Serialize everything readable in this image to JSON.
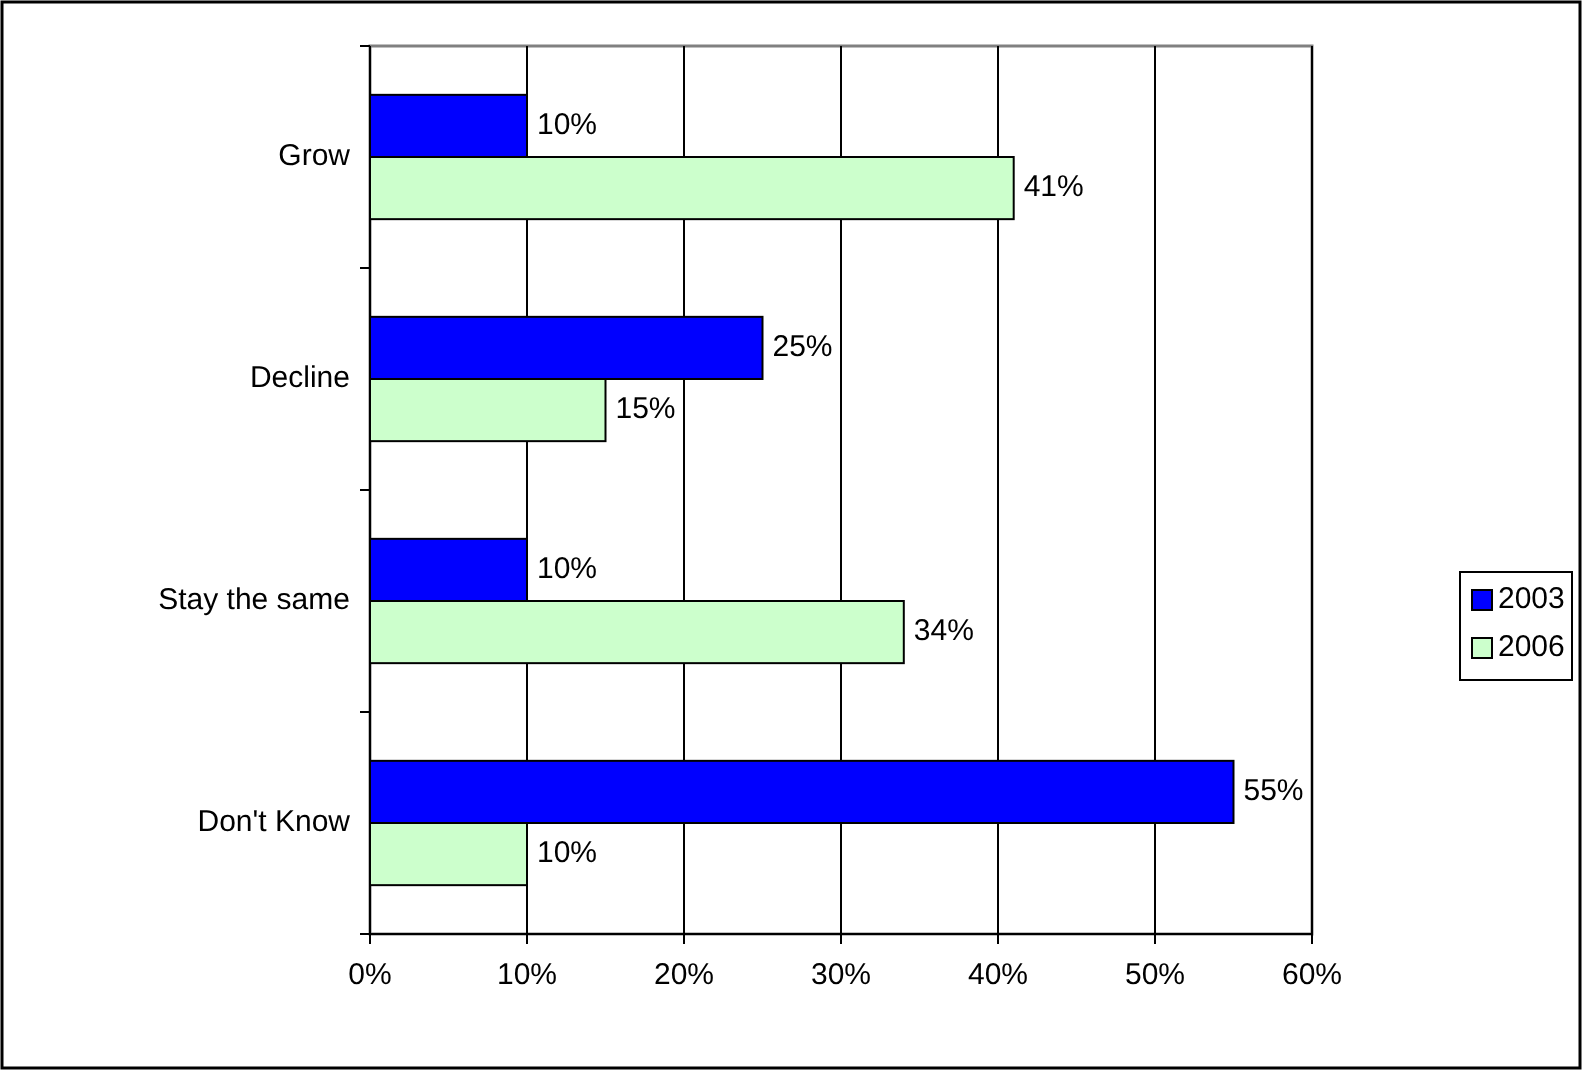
{
  "chart_data": {
    "type": "bar",
    "orientation": "horizontal",
    "categories": [
      "Grow",
      "Decline",
      "Stay the same",
      "Don't Know"
    ],
    "series": [
      {
        "name": "2003",
        "color": "#0000ff",
        "values": [
          10,
          25,
          10,
          55
        ],
        "value_labels": [
          "10%",
          "25%",
          "10%",
          "55%"
        ]
      },
      {
        "name": "2006",
        "color": "#ccffcc",
        "values": [
          41,
          15,
          34,
          10
        ],
        "value_labels": [
          "41%",
          "15%",
          "34%",
          "10%"
        ]
      }
    ],
    "xlim": [
      0,
      60
    ],
    "xticks": [
      {
        "value": 0,
        "label": "0%"
      },
      {
        "value": 10,
        "label": "10%"
      },
      {
        "value": 20,
        "label": "20%"
      },
      {
        "value": 30,
        "label": "30%"
      },
      {
        "value": 40,
        "label": "40%"
      },
      {
        "value": 50,
        "label": "50%"
      },
      {
        "value": 60,
        "label": "60%"
      }
    ],
    "grid": "x",
    "legend": "right"
  }
}
